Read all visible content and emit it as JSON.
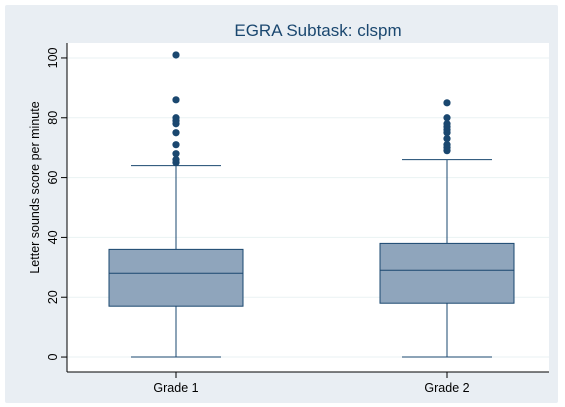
{
  "chart_data": {
    "type": "boxplot",
    "title": "EGRA Subtask: clspm",
    "ylabel": "Letter sounds score per minute",
    "xlabel": "",
    "ylim": [
      -5,
      105
    ],
    "yticks": [
      0,
      20,
      40,
      60,
      80,
      100
    ],
    "grid": true,
    "legend": "none",
    "categories": [
      "Grade 1",
      "Grade 2"
    ],
    "series": [
      {
        "category": "Grade 1",
        "min": 0,
        "q1": 17,
        "median": 28,
        "q3": 36,
        "max": 64,
        "outliers": [
          65,
          66,
          68,
          71,
          75,
          78,
          79,
          80,
          86,
          101
        ]
      },
      {
        "category": "Grade 2",
        "min": 0,
        "q1": 18,
        "median": 29,
        "q3": 38,
        "max": 66,
        "outliers": [
          69,
          70,
          71,
          73,
          75,
          76,
          77,
          78,
          80,
          85
        ]
      }
    ],
    "colors": {
      "box_fill": "#8fa5bc",
      "box_stroke": "#1a476f",
      "outlier": "#1a476f",
      "plot_background": "#ffffff",
      "outer_background": "#e9eef3",
      "grid": "#eaf2f3",
      "title": "#1a476f"
    }
  }
}
